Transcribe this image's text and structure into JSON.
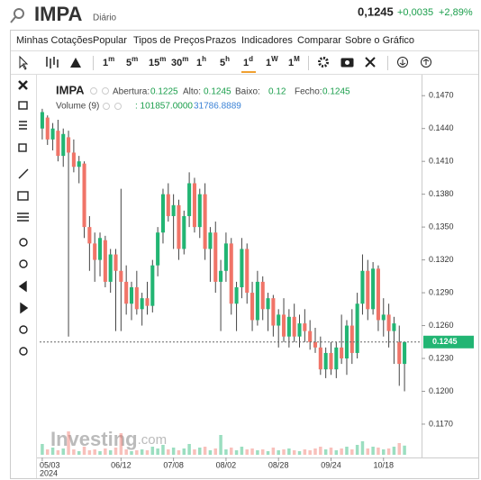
{
  "header": {
    "symbol": "IMPA",
    "period": "Diário",
    "price": "0,1245",
    "change": "+0,0035",
    "change_pct": "+2,89%"
  },
  "menu": [
    "Minhas Cotações",
    "Popular",
    "Tipos de Preços",
    "Prazos",
    "Indicadores",
    "Comparar",
    "Sobre o Gráfico"
  ],
  "intervals": [
    {
      "n": "1",
      "u": "m"
    },
    {
      "n": "5",
      "u": "m"
    },
    {
      "n": "15",
      "u": "m"
    },
    {
      "n": "30",
      "u": "m"
    },
    {
      "n": "1",
      "u": "h"
    },
    {
      "n": "5",
      "u": "h"
    },
    {
      "n": "1",
      "u": "d"
    },
    {
      "n": "1",
      "u": "W"
    },
    {
      "n": "1",
      "u": "M"
    }
  ],
  "chart_data": {
    "type": "candlestick",
    "symbol": "IMPA",
    "legend": {
      "open_label": "Abertura:",
      "high_label": "Alto:",
      "low_label": "Baixo:",
      "close_label": "Fecho:",
      "volume_label": "Volume (9)",
      "volume_value": ": 101857.0000",
      "volume_ma": "31786.8889"
    },
    "up_color": "#22b573",
    "down_color": "#f07468",
    "candles": [
      [
        0.144,
        0.1458,
        0.143,
        0.1455
      ],
      [
        0.145,
        0.1452,
        0.1425,
        0.143
      ],
      [
        0.143,
        0.1445,
        0.142,
        0.144
      ],
      [
        0.1438,
        0.1448,
        0.141,
        0.1415
      ],
      [
        0.1415,
        0.144,
        0.1405,
        0.1435
      ],
      [
        0.1432,
        0.1438,
        0.125,
        0.1418
      ],
      [
        0.1418,
        0.143,
        0.14,
        0.1405
      ],
      [
        0.1405,
        0.1415,
        0.139,
        0.141
      ],
      [
        0.1408,
        0.141,
        0.134,
        0.135
      ],
      [
        0.135,
        0.136,
        0.131,
        0.1335
      ],
      [
        0.1335,
        0.1345,
        0.13,
        0.132
      ],
      [
        0.132,
        0.1345,
        0.1305,
        0.134
      ],
      [
        0.1338,
        0.1342,
        0.1295,
        0.13
      ],
      [
        0.13,
        0.133,
        0.129,
        0.1325
      ],
      [
        0.1325,
        0.133,
        0.1255,
        0.131
      ],
      [
        0.131,
        0.1385,
        0.1255,
        0.13
      ],
      [
        0.13,
        0.1315,
        0.127,
        0.128
      ],
      [
        0.128,
        0.13,
        0.1265,
        0.1295
      ],
      [
        0.1295,
        0.131,
        0.127,
        0.1275
      ],
      [
        0.1275,
        0.129,
        0.126,
        0.1285
      ],
      [
        0.1285,
        0.13,
        0.127,
        0.1278
      ],
      [
        0.1278,
        0.132,
        0.1272,
        0.1315
      ],
      [
        0.1315,
        0.135,
        0.1305,
        0.1345
      ],
      [
        0.1345,
        0.1385,
        0.1335,
        0.138
      ],
      [
        0.138,
        0.139,
        0.1355,
        0.136
      ],
      [
        0.136,
        0.138,
        0.133,
        0.137
      ],
      [
        0.137,
        0.1375,
        0.132,
        0.133
      ],
      [
        0.133,
        0.1365,
        0.1325,
        0.136
      ],
      [
        0.136,
        0.14,
        0.135,
        0.139
      ],
      [
        0.139,
        0.1395,
        0.1345,
        0.135
      ],
      [
        0.135,
        0.1385,
        0.134,
        0.138
      ],
      [
        0.138,
        0.139,
        0.132,
        0.133
      ],
      [
        0.133,
        0.135,
        0.13,
        0.1345
      ],
      [
        0.1345,
        0.1355,
        0.129,
        0.13
      ],
      [
        0.13,
        0.132,
        0.1255,
        0.131
      ],
      [
        0.131,
        0.1345,
        0.13,
        0.1335
      ],
      [
        0.1335,
        0.134,
        0.127,
        0.128
      ],
      [
        0.128,
        0.13,
        0.1255,
        0.1295
      ],
      [
        0.1295,
        0.134,
        0.1285,
        0.133
      ],
      [
        0.133,
        0.1335,
        0.128,
        0.129
      ],
      [
        0.129,
        0.13,
        0.1255,
        0.1265
      ],
      [
        0.1265,
        0.131,
        0.126,
        0.13
      ],
      [
        0.13,
        0.1305,
        0.1265,
        0.1275
      ],
      [
        0.1275,
        0.129,
        0.1255,
        0.1285
      ],
      [
        0.1285,
        0.1288,
        0.125,
        0.126
      ],
      [
        0.126,
        0.1275,
        0.124,
        0.127
      ],
      [
        0.127,
        0.1285,
        0.1245,
        0.125
      ],
      [
        0.125,
        0.1275,
        0.124,
        0.1268
      ],
      [
        0.1268,
        0.128,
        0.1245,
        0.125
      ],
      [
        0.125,
        0.127,
        0.124,
        0.1262
      ],
      [
        0.1262,
        0.1275,
        0.1245,
        0.1255
      ],
      [
        0.1255,
        0.1265,
        0.1238,
        0.1245
      ],
      [
        0.1245,
        0.1258,
        0.1235,
        0.124
      ],
      [
        0.124,
        0.125,
        0.1215,
        0.122
      ],
      [
        0.122,
        0.124,
        0.1212,
        0.1235
      ],
      [
        0.1235,
        0.1245,
        0.1215,
        0.122
      ],
      [
        0.122,
        0.1245,
        0.1212,
        0.124
      ],
      [
        0.124,
        0.127,
        0.1225,
        0.123
      ],
      [
        0.123,
        0.1265,
        0.1215,
        0.126
      ],
      [
        0.126,
        0.1275,
        0.1225,
        0.1235
      ],
      [
        0.1235,
        0.129,
        0.123,
        0.128
      ],
      [
        0.128,
        0.1325,
        0.127,
        0.131
      ],
      [
        0.131,
        0.132,
        0.1265,
        0.1275
      ],
      [
        0.1275,
        0.1318,
        0.127,
        0.1312
      ],
      [
        0.1312,
        0.1315,
        0.1255,
        0.1265
      ],
      [
        0.1265,
        0.1285,
        0.125,
        0.127
      ],
      [
        0.127,
        0.128,
        0.124,
        0.1255
      ],
      [
        0.1255,
        0.1268,
        0.1225,
        0.1262
      ],
      [
        0.1245,
        0.126,
        0.1205,
        0.1225
      ],
      [
        0.1225,
        0.1245,
        0.12,
        0.1245
      ]
    ],
    "volume": [
      120000,
      60000,
      80000,
      50000,
      70000,
      260000,
      60000,
      40000,
      90000,
      50000,
      60000,
      40000,
      70000,
      50000,
      80000,
      240000,
      60000,
      40000,
      50000,
      60000,
      50000,
      90000,
      70000,
      110000,
      60000,
      80000,
      50000,
      70000,
      120000,
      60000,
      80000,
      90000,
      50000,
      70000,
      220000,
      60000,
      80000,
      50000,
      90000,
      60000,
      70000,
      50000,
      60000,
      40000,
      80000,
      50000,
      60000,
      70000,
      50000,
      40000,
      60000,
      50000,
      70000,
      90000,
      60000,
      80000,
      50000,
      70000,
      90000,
      60000,
      110000,
      150000,
      70000,
      90000,
      80000,
      60000,
      70000,
      90000,
      130000,
      101857
    ],
    "volume_lim": [
      0,
      400000
    ],
    "ylim": [
      0.1142,
      0.1485
    ],
    "yticks": [
      {
        "value": 0.147,
        "label": "0.1470"
      },
      {
        "value": 0.144,
        "label": "0.1440"
      },
      {
        "value": 0.141,
        "label": "0.1410"
      },
      {
        "value": 0.138,
        "label": "0.1380"
      },
      {
        "value": 0.135,
        "label": "0.1350"
      },
      {
        "value": 0.132,
        "label": "0.1320"
      },
      {
        "value": 0.129,
        "label": "0.1290"
      },
      {
        "value": 0.126,
        "label": "0.1260"
      },
      {
        "value": 0.123,
        "label": "0.1230"
      },
      {
        "value": 0.12,
        "label": "0.1200"
      },
      {
        "value": 0.117,
        "label": "0.1170"
      }
    ],
    "xlim": [
      -0.5,
      69.5
    ],
    "xticks": [
      {
        "value": 0,
        "label": "05/03"
      },
      {
        "value": 15,
        "label": "06/12"
      },
      {
        "value": 25,
        "label": "07/08"
      },
      {
        "value": 35,
        "label": "08/02"
      },
      {
        "value": 45,
        "label": "08/28"
      },
      {
        "value": 55,
        "label": "09/24"
      },
      {
        "value": 65,
        "label": "10/18"
      }
    ],
    "x_year": "2024",
    "watermark": "Investing",
    "watermark_suffix": ".com"
  }
}
